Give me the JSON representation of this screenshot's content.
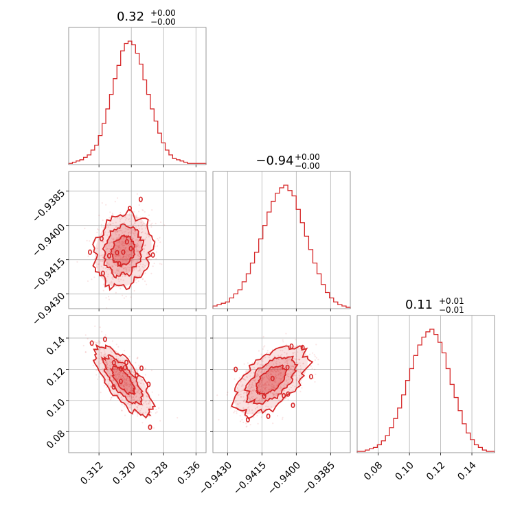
{
  "chart_data": {
    "type": "corner",
    "color": "#d62728",
    "grid": true,
    "parameters": [
      {
        "title_value": "0.32",
        "title_plus": "+0.00",
        "title_minus": "−0.00",
        "range": [
          0.3045,
          0.3385
        ],
        "ticks": [
          0.312,
          0.32,
          0.328,
          0.336
        ],
        "tick_labels": [
          "0.312",
          "0.320",
          "0.328",
          "0.336"
        ],
        "hist_values": [
          1,
          2,
          3,
          4,
          6,
          8,
          12,
          16,
          24,
          34,
          46,
          58,
          71,
          82,
          94,
          100,
          102,
          99,
          92,
          83,
          70,
          58,
          46,
          36,
          26,
          18,
          12,
          8,
          5,
          4,
          3,
          2,
          1,
          1,
          1,
          1,
          1
        ],
        "mean": 0.318,
        "sd": 0.0035
      },
      {
        "title_value": "−0.94",
        "title_plus": "+0.00",
        "title_minus": "−0.00",
        "range": [
          -0.94364,
          -0.93764
        ],
        "ticks": [
          -0.943,
          -0.9415,
          -0.94,
          -0.9385
        ],
        "tick_labels": [
          "−0.9430",
          "−0.9415",
          "−0.9400",
          "−0.9385"
        ],
        "hist_values": [
          2,
          3,
          4,
          5,
          8,
          11,
          14,
          20,
          26,
          34,
          42,
          52,
          62,
          72,
          80,
          86,
          90,
          92,
          88,
          84,
          74,
          64,
          54,
          44,
          34,
          26,
          18,
          12,
          8,
          5,
          3,
          2,
          1
        ],
        "mean": -0.9411,
        "sd": 0.0008
      },
      {
        "title_value": "0.11",
        "title_plus": "+0.01",
        "title_minus": "−0.01",
        "range": [
          0.0665,
          0.1545
        ],
        "ticks": [
          0.08,
          0.1,
          0.12,
          0.14
        ],
        "tick_labels": [
          "0.08",
          "0.10",
          "0.12",
          "0.14"
        ],
        "hist_values": [
          1,
          1,
          2,
          3,
          4,
          6,
          9,
          13,
          19,
          26,
          34,
          44,
          55,
          64,
          74,
          82,
          88,
          92,
          94,
          90,
          84,
          76,
          64,
          52,
          42,
          32,
          22,
          15,
          10,
          6,
          4,
          2,
          1,
          1
        ],
        "mean": 0.113,
        "sd": 0.011
      }
    ],
    "correlations": {
      "1_0": 0.15,
      "2_0": -0.72,
      "2_1": 0.55
    }
  }
}
